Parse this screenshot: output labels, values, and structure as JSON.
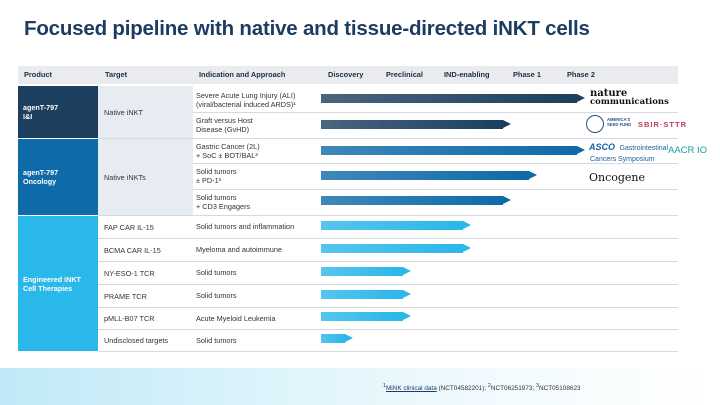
{
  "title": "Focused pipeline with native and tissue-directed iNKT cells",
  "headers": {
    "product": "Product",
    "target": "Target",
    "indication": "Indication and Approach",
    "discovery": "Discovery",
    "preclinical": "Preclinical",
    "ind_enabling": "IND-enabling",
    "phase1": "Phase 1",
    "phase2": "Phase 2"
  },
  "groups": [
    {
      "line1": "agenT-797",
      "line2": "I&I"
    },
    {
      "line1": "agenT-797",
      "line2": "Oncology"
    },
    {
      "line1": "Engineered iNKT",
      "line2": "Cell Therapies"
    }
  ],
  "targets": [
    "Native iNKT",
    "Native iNKTs",
    "FAP CAR IL-15",
    "BCMA CAR IL-15",
    "NY-ESO-1 TCR",
    "PRAME TCR",
    "pMLL-B07 TCR",
    "Undisclosed targets"
  ],
  "rows": [
    {
      "line1": "Severe Acute Lung Injury (ALI)",
      "line2": "(viral/bacterial induced ARDS)¹",
      "progress": 1.0
    },
    {
      "line1": "Graft versus Host",
      "line2": "Disease (GvHD)",
      "progress": 0.72
    },
    {
      "line1": "Gastric Cancer (2L)",
      "line2": "+ SoC ± BOT/BAL²",
      "progress": 1.0
    },
    {
      "line1": "Solid tumors",
      "line2": "± PD-1³",
      "progress": 0.82
    },
    {
      "line1": "Solid tumors",
      "line2": "+ CD3 Engagers",
      "progress": 0.72
    },
    {
      "line1": "Solid tumors and inflammation",
      "line2": "",
      "progress": 0.57
    },
    {
      "line1": "Myeloma and autoimmune",
      "line2": "",
      "progress": 0.57
    },
    {
      "line1": "Solid tumors",
      "line2": "",
      "progress": 0.34
    },
    {
      "line1": "Solid tumors",
      "line2": "",
      "progress": 0.34
    },
    {
      "line1": "Acute Myeloid Leukemia",
      "line2": "",
      "progress": 0.34
    },
    {
      "line1": "Solid tumors",
      "line2": "",
      "progress": 0.12
    }
  ],
  "logos": {
    "nature_line1": "nature",
    "nature_line2": "communications",
    "seed_fund_line1": "AMERICA'S",
    "seed_fund_line2": "SEED FUND",
    "sbir": "SBIR·STTR",
    "asco_brand": "ASCO",
    "asco_line1": "Gastrointestinal",
    "asco_line2": "Cancers Symposium",
    "aacr": "AACR IO",
    "oncogene": "Oncogene"
  },
  "footnote": {
    "sup1": "1",
    "link": "MiNK clinical data",
    "text1": " (NCT04582201); ",
    "sup2": "2",
    "text2": "NCT06251973; ",
    "sup3": "3",
    "text3": "NCT05108623"
  },
  "colors": {
    "title": "#1d3c64",
    "group_ii": "#1c3f5f",
    "group_oncology": "#0e6aa8",
    "group_engineered": "#2ab7e9",
    "bar_dark": "#1c3f5f",
    "bar_mid": "#0e6aa8",
    "bar_light": "#2ab7e9"
  }
}
